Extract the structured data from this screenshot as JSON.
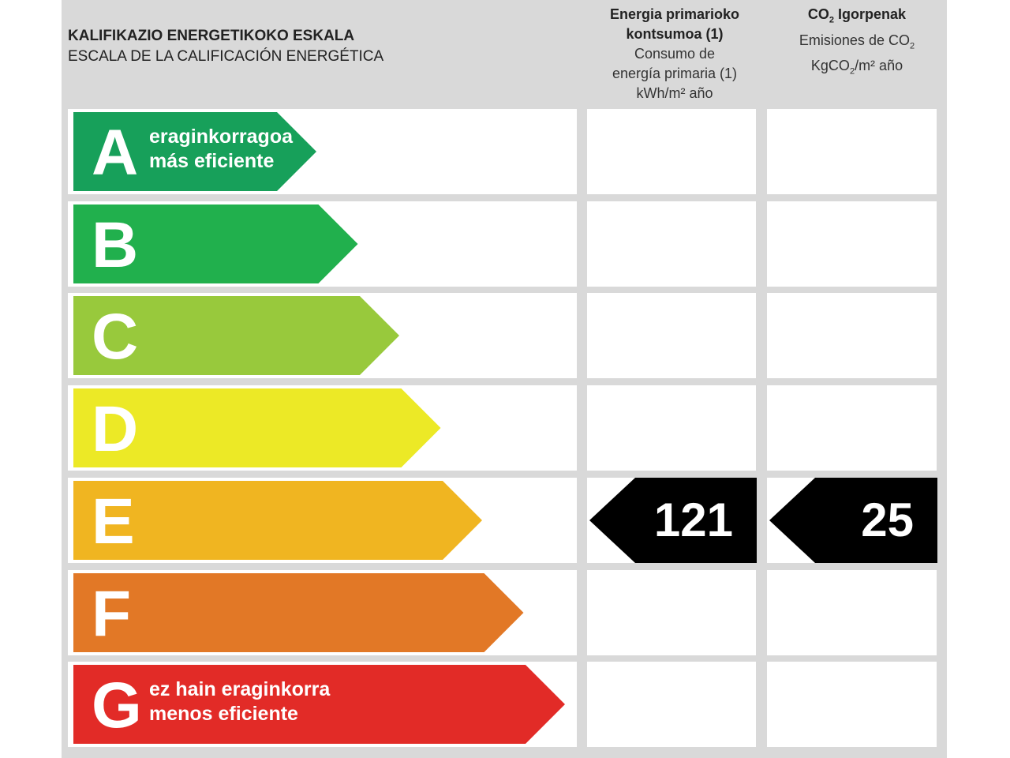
{
  "header": {
    "scale_title_eu": "KALIFIKAZIO ENERGETIKOKO ESKALA",
    "scale_title_es": "ESCALA DE LA CALIFICACIÓN ENERGÉTICA",
    "energy_col": {
      "title_eu_1": "Energia primarioko",
      "title_eu_2": "kontsumoa (1)",
      "title_es_1": "Consumo de",
      "title_es_2": "energía primaria (1)",
      "unit": "kWh/m² año"
    },
    "co2_col": {
      "title_eu_prefix": "CO",
      "title_eu_sub": "2",
      "title_eu_suffix": " Igorpenak",
      "title_es_prefix": "Emisiones de CO",
      "title_es_sub": "2",
      "unit_prefix": "KgCO",
      "unit_sub": "2",
      "unit_suffix": "/m² año"
    }
  },
  "classes": [
    {
      "letter": "A",
      "color": "#17a05a",
      "desc_1": "eraginkorragoa",
      "desc_2": "más eficiente"
    },
    {
      "letter": "B",
      "color": "#21b04d",
      "desc_1": "",
      "desc_2": ""
    },
    {
      "letter": "C",
      "color": "#98c93c",
      "desc_1": "",
      "desc_2": ""
    },
    {
      "letter": "D",
      "color": "#ece926",
      "desc_1": "",
      "desc_2": ""
    },
    {
      "letter": "E",
      "color": "#f0b521",
      "desc_1": "",
      "desc_2": ""
    },
    {
      "letter": "F",
      "color": "#e27826",
      "desc_1": "",
      "desc_2": ""
    },
    {
      "letter": "G",
      "color": "#e22b27",
      "desc_1": "ez hain eraginkorra",
      "desc_2": "menos eficiente"
    }
  ],
  "rating": {
    "class": "E",
    "energy_value": "121",
    "co2_value": "25",
    "marker_color": "#000000"
  }
}
